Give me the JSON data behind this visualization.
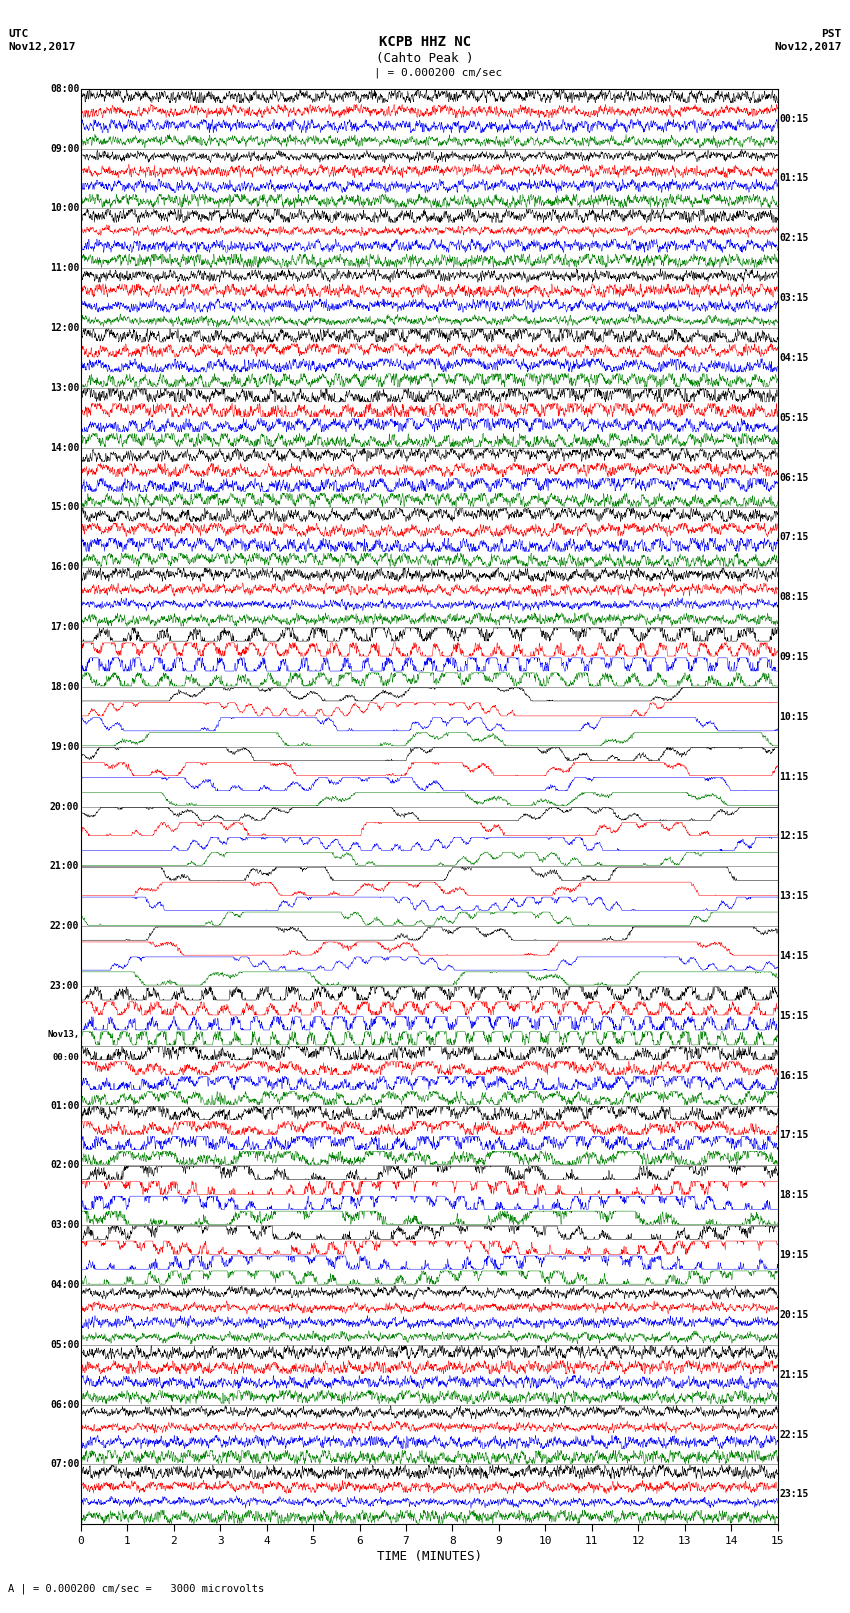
{
  "title_line1": "KCPB HHZ NC",
  "title_line2": "(Cahto Peak )",
  "scale_label": "= 0.000200 cm/sec",
  "scale_label2": "= 0.000200 cm/sec =   3000 microvolts",
  "utc_label": "UTC",
  "pst_label": "PST",
  "date_left": "Nov12,2017",
  "date_right": "Nov12,2017",
  "xlabel": "TIME (MINUTES)",
  "left_times": [
    "08:00",
    "09:00",
    "10:00",
    "11:00",
    "12:00",
    "13:00",
    "14:00",
    "15:00",
    "16:00",
    "17:00",
    "18:00",
    "19:00",
    "20:00",
    "21:00",
    "22:00",
    "23:00",
    "Nov13,\n00:00",
    "01:00",
    "02:00",
    "03:00",
    "04:00",
    "05:00",
    "06:00",
    "07:00"
  ],
  "right_times": [
    "00:15",
    "01:15",
    "02:15",
    "03:15",
    "04:15",
    "05:15",
    "06:15",
    "07:15",
    "08:15",
    "09:15",
    "10:15",
    "11:15",
    "12:15",
    "13:15",
    "14:15",
    "15:15",
    "16:15",
    "17:15",
    "18:15",
    "19:15",
    "20:15",
    "21:15",
    "22:15",
    "23:15"
  ],
  "x_ticks": [
    0,
    1,
    2,
    3,
    4,
    5,
    6,
    7,
    8,
    9,
    10,
    11,
    12,
    13,
    14,
    15
  ],
  "bg_color": "#ffffff",
  "trace_color_cycle": [
    "black",
    "red",
    "blue",
    "green"
  ],
  "fig_width": 8.5,
  "fig_height": 16.13,
  "dpi": 100,
  "num_hours": 24,
  "samples": 3000
}
